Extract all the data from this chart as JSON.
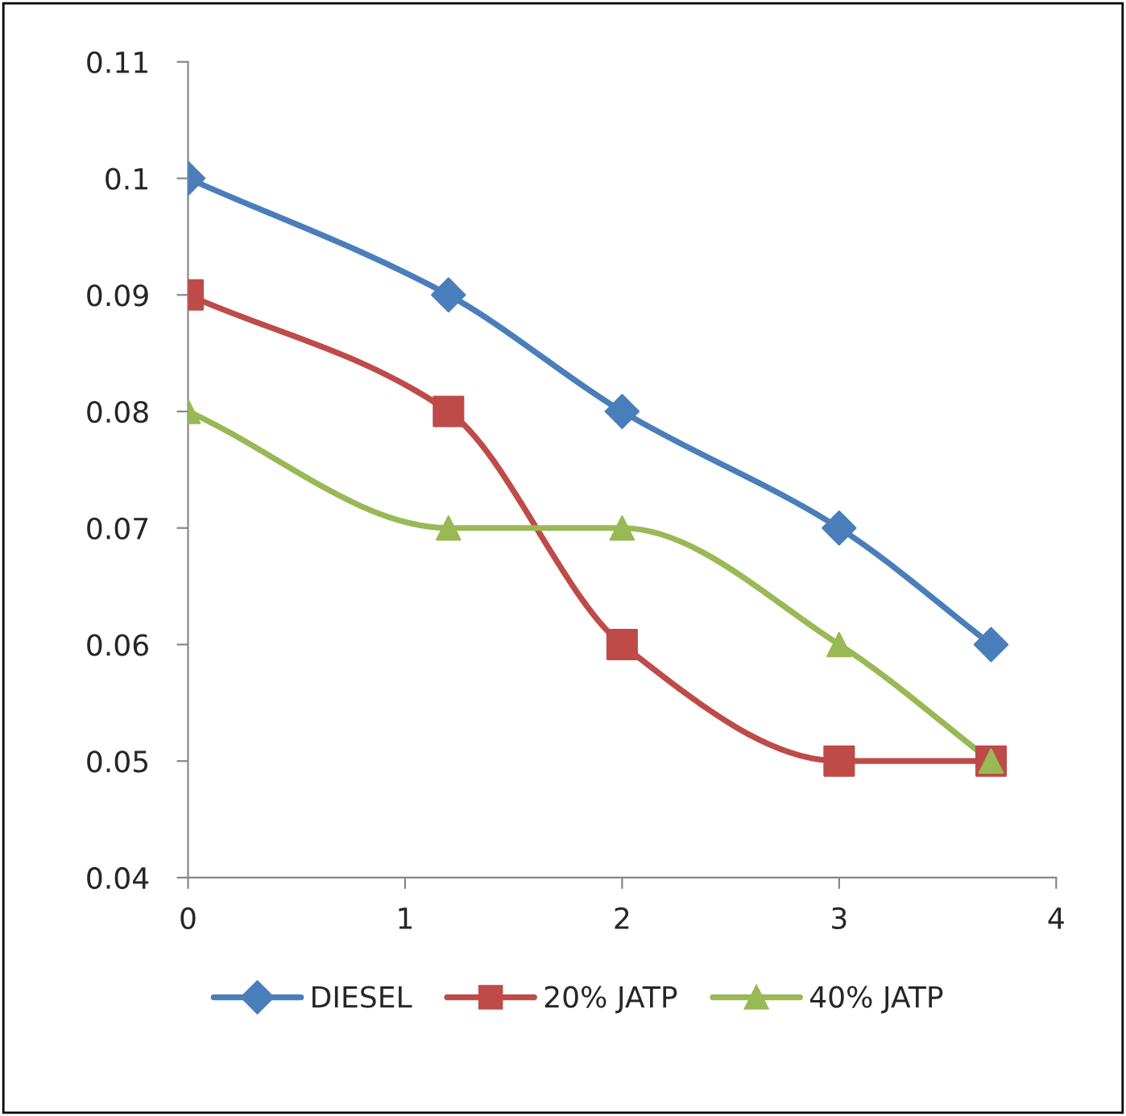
{
  "chart_data": {
    "type": "line",
    "x": [
      0,
      1.2,
      2,
      3,
      3.7
    ],
    "series": [
      {
        "name": "DIESEL",
        "color": "#4a7ebb",
        "marker": "diamond",
        "values": [
          0.1,
          0.09,
          0.08,
          0.07,
          0.06
        ]
      },
      {
        "name": "20% JATP",
        "color": "#be4b48",
        "marker": "square",
        "values": [
          0.09,
          0.08,
          0.06,
          0.05,
          0.05
        ]
      },
      {
        "name": "40% JATP",
        "color": "#98b954",
        "marker": "triangle",
        "values": [
          0.08,
          0.07,
          0.07,
          0.06,
          0.05
        ]
      }
    ],
    "xlim": [
      0,
      4
    ],
    "xticks": [
      0,
      1,
      2,
      3,
      4
    ],
    "ylim": [
      0.04,
      0.11
    ],
    "yticks": [
      0.04,
      0.05,
      0.06,
      0.07,
      0.08,
      0.09,
      0.1,
      0.11
    ],
    "grid": false,
    "legend": "bottom",
    "line_style": "solid"
  }
}
